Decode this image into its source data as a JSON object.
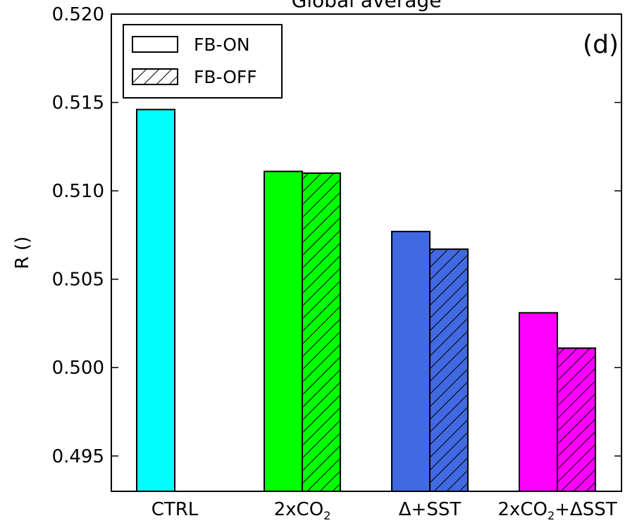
{
  "chart_data": {
    "type": "bar",
    "title": "Global average",
    "panel_label": "(d)",
    "ylabel": "R ()",
    "xlabel": "",
    "ylim": [
      0.493,
      0.52
    ],
    "yticks": [
      "0.495",
      "0.500",
      "0.505",
      "0.510",
      "0.515",
      "0.520"
    ],
    "categories": [
      {
        "main": "CTRL",
        "parts": [
          {
            "t": "CTRL"
          }
        ]
      },
      {
        "main": "2xCO2",
        "parts": [
          {
            "t": "2xCO"
          },
          {
            "t": "2",
            "sub": true
          }
        ]
      },
      {
        "main": "Δ+SST",
        "parts": [
          {
            "t": "Δ+SST"
          }
        ]
      },
      {
        "main": "2xCO2+ΔSST",
        "parts": [
          {
            "t": "2xCO"
          },
          {
            "t": "2",
            "sub": true
          },
          {
            "t": "+ΔSST"
          }
        ]
      }
    ],
    "category_colors": [
      "#00ffff",
      "#00ff00",
      "#4169e1",
      "#ff00ff"
    ],
    "series": [
      {
        "name": "FB-ON",
        "hatch": false,
        "values": [
          0.5146,
          0.5111,
          0.5077,
          0.5031
        ]
      },
      {
        "name": "FB-OFF",
        "hatch": true,
        "values": [
          null,
          0.511,
          0.5067,
          0.5011
        ]
      }
    ],
    "legend": {
      "position": "upper-left"
    },
    "grid": false
  }
}
